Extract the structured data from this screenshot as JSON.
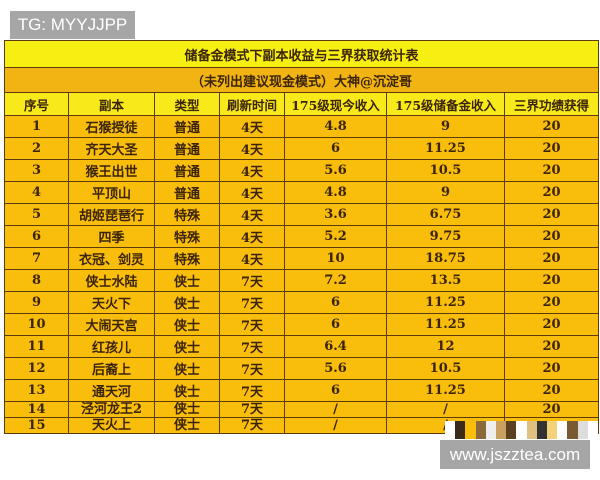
{
  "watermarks": {
    "top_left": "TG: MYYJJPP",
    "bottom_right": "www.jszztea.com"
  },
  "table": {
    "title": "储备金模式下副本收益与三界获取统计表",
    "subtitle": "（未列出建议现金模式）大神@沉淀哥",
    "headers": [
      "序号",
      "副本",
      "类型",
      "刷新时间",
      "175级现今收入",
      "175级储备金收入",
      "三界功绩获得"
    ],
    "rows": [
      [
        "1",
        "石猴授徒",
        "普通",
        "4天",
        "4.8",
        "9",
        "20"
      ],
      [
        "2",
        "齐天大圣",
        "普通",
        "4天",
        "6",
        "11.25",
        "20"
      ],
      [
        "3",
        "猴王出世",
        "普通",
        "4天",
        "5.6",
        "10.5",
        "20"
      ],
      [
        "4",
        "平顶山",
        "普通",
        "4天",
        "4.8",
        "9",
        "20"
      ],
      [
        "5",
        "胡姬琵琶行",
        "特殊",
        "4天",
        "3.6",
        "6.75",
        "20"
      ],
      [
        "6",
        "四季",
        "特殊",
        "4天",
        "5.2",
        "9.75",
        "20"
      ],
      [
        "7",
        "衣冠、剑灵",
        "特殊",
        "4天",
        "10",
        "18.75",
        "20"
      ],
      [
        "8",
        "侠士水陆",
        "侠士",
        "7天",
        "7.2",
        "13.5",
        "20"
      ],
      [
        "9",
        "天火下",
        "侠士",
        "7天",
        "6",
        "11.25",
        "20"
      ],
      [
        "10",
        "大闹天宫",
        "侠士",
        "7天",
        "6",
        "11.25",
        "20"
      ],
      [
        "11",
        "红孩儿",
        "侠士",
        "7天",
        "6.4",
        "12",
        "20"
      ],
      [
        "12",
        "后裔上",
        "侠士",
        "7天",
        "5.6",
        "10.5",
        "20"
      ],
      [
        "13",
        "通天河",
        "侠士",
        "7天",
        "6",
        "11.25",
        "20"
      ],
      [
        "14",
        "泾河龙王2",
        "侠士",
        "7天",
        "/",
        "/",
        "20"
      ],
      [
        "15",
        "天火上",
        "侠士",
        "7天",
        "/",
        "/",
        ""
      ]
    ]
  },
  "colors": {
    "title_bg": "#f7ef12",
    "row_bg": "#f9bd0c",
    "border": "#5c3b10"
  }
}
